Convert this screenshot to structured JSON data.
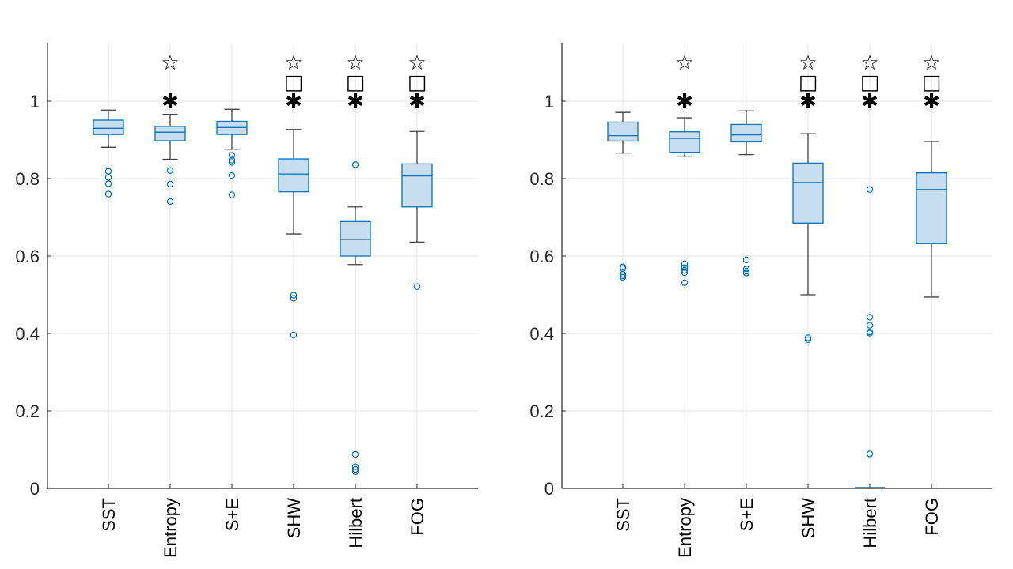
{
  "colors": {
    "box_edge": "#0072BD",
    "box_fill": "#C6DEF0",
    "whisker": "#404040",
    "grid": "#E6E6E6",
    "axis": "#262626"
  },
  "chart_data": [
    {
      "type": "box",
      "title": "",
      "xlabel": "",
      "ylabel": "",
      "ylim": [
        0,
        1.15
      ],
      "yticks": [
        0,
        0.2,
        0.4,
        0.6,
        0.8,
        1
      ],
      "ytick_labels": [
        "0",
        "0.2",
        "0.4",
        "0.6",
        "0.8",
        "1"
      ],
      "grid": true,
      "categories": [
        "SST",
        "Entropy",
        "S+E",
        "SHW",
        "Hilbert",
        "FOG"
      ],
      "boxes": [
        {
          "category": "SST",
          "whisker_low": 0.881,
          "q1": 0.914,
          "median": 0.93,
          "q3": 0.951,
          "whisker_high": 0.977,
          "outliers": [
            0.819,
            0.803,
            0.787,
            0.76
          ],
          "markers": []
        },
        {
          "category": "Entropy",
          "whisker_low": 0.85,
          "q1": 0.898,
          "median": 0.92,
          "q3": 0.935,
          "whisker_high": 0.966,
          "outliers": [
            0.821,
            0.786,
            0.741
          ],
          "markers": [
            "☆",
            "✱"
          ]
        },
        {
          "category": "S+E",
          "whisker_low": 0.876,
          "q1": 0.914,
          "median": 0.932,
          "q3": 0.948,
          "whisker_high": 0.979,
          "outliers": [
            0.86,
            0.848,
            0.842,
            0.808,
            0.758
          ],
          "markers": []
        },
        {
          "category": "SHW",
          "whisker_low": 0.657,
          "q1": 0.766,
          "median": 0.812,
          "q3": 0.851,
          "whisker_high": 0.927,
          "outliers": [
            0.499,
            0.491,
            0.396
          ],
          "markers": [
            "☆",
            "□",
            "✱"
          ]
        },
        {
          "category": "Hilbert",
          "whisker_low": 0.578,
          "q1": 0.6,
          "median": 0.643,
          "q3": 0.689,
          "whisker_high": 0.727,
          "outliers": [
            0.836,
            0.088,
            0.056,
            0.049,
            0.043
          ],
          "markers": [
            "☆",
            "□",
            "✱"
          ]
        },
        {
          "category": "FOG",
          "whisker_low": 0.636,
          "q1": 0.727,
          "median": 0.807,
          "q3": 0.838,
          "whisker_high": 0.922,
          "outliers": [
            0.521
          ],
          "markers": [
            "☆",
            "□",
            "✱"
          ]
        }
      ]
    },
    {
      "type": "box",
      "title": "",
      "xlabel": "",
      "ylabel": "",
      "ylim": [
        0,
        1.15
      ],
      "yticks": [
        0,
        0.2,
        0.4,
        0.6,
        0.8,
        1
      ],
      "ytick_labels": [
        "0",
        "0.2",
        "0.4",
        "0.6",
        "0.8",
        "1"
      ],
      "grid": true,
      "categories": [
        "SST",
        "Entropy",
        "S+E",
        "SHW",
        "Hilbert",
        "FOG"
      ],
      "boxes": [
        {
          "category": "SST",
          "whisker_low": 0.866,
          "q1": 0.897,
          "median": 0.911,
          "q3": 0.946,
          "whisker_high": 0.971,
          "outliers": [
            0.572,
            0.568,
            0.553,
            0.549,
            0.545
          ],
          "markers": []
        },
        {
          "category": "Entropy",
          "whisker_low": 0.858,
          "q1": 0.868,
          "median": 0.904,
          "q3": 0.921,
          "whisker_high": 0.957,
          "outliers": [
            0.58,
            0.57,
            0.563,
            0.557,
            0.531
          ],
          "markers": [
            "☆",
            "✱"
          ]
        },
        {
          "category": "S+E",
          "whisker_low": 0.862,
          "q1": 0.895,
          "median": 0.913,
          "q3": 0.94,
          "whisker_high": 0.975,
          "outliers": [
            0.59,
            0.567,
            0.561,
            0.556
          ],
          "markers": []
        },
        {
          "category": "SHW",
          "whisker_low": 0.5,
          "q1": 0.685,
          "median": 0.79,
          "q3": 0.84,
          "whisker_high": 0.916,
          "outliers": [
            0.389,
            0.384
          ],
          "markers": [
            "☆",
            "□",
            "✱"
          ]
        },
        {
          "category": "Hilbert",
          "whisker_low": 0.0,
          "q1": 0.0,
          "median": 0.0,
          "q3": 0.0,
          "whisker_high": 0.0,
          "outliers": [
            0.772,
            0.442,
            0.421,
            0.404,
            0.401,
            0.089
          ],
          "markers": [
            "☆",
            "□",
            "✱"
          ]
        },
        {
          "category": "FOG",
          "whisker_low": 0.494,
          "q1": 0.632,
          "median": 0.772,
          "q3": 0.815,
          "whisker_high": 0.896,
          "outliers": [],
          "markers": [
            "☆",
            "□",
            "✱"
          ]
        }
      ]
    }
  ]
}
